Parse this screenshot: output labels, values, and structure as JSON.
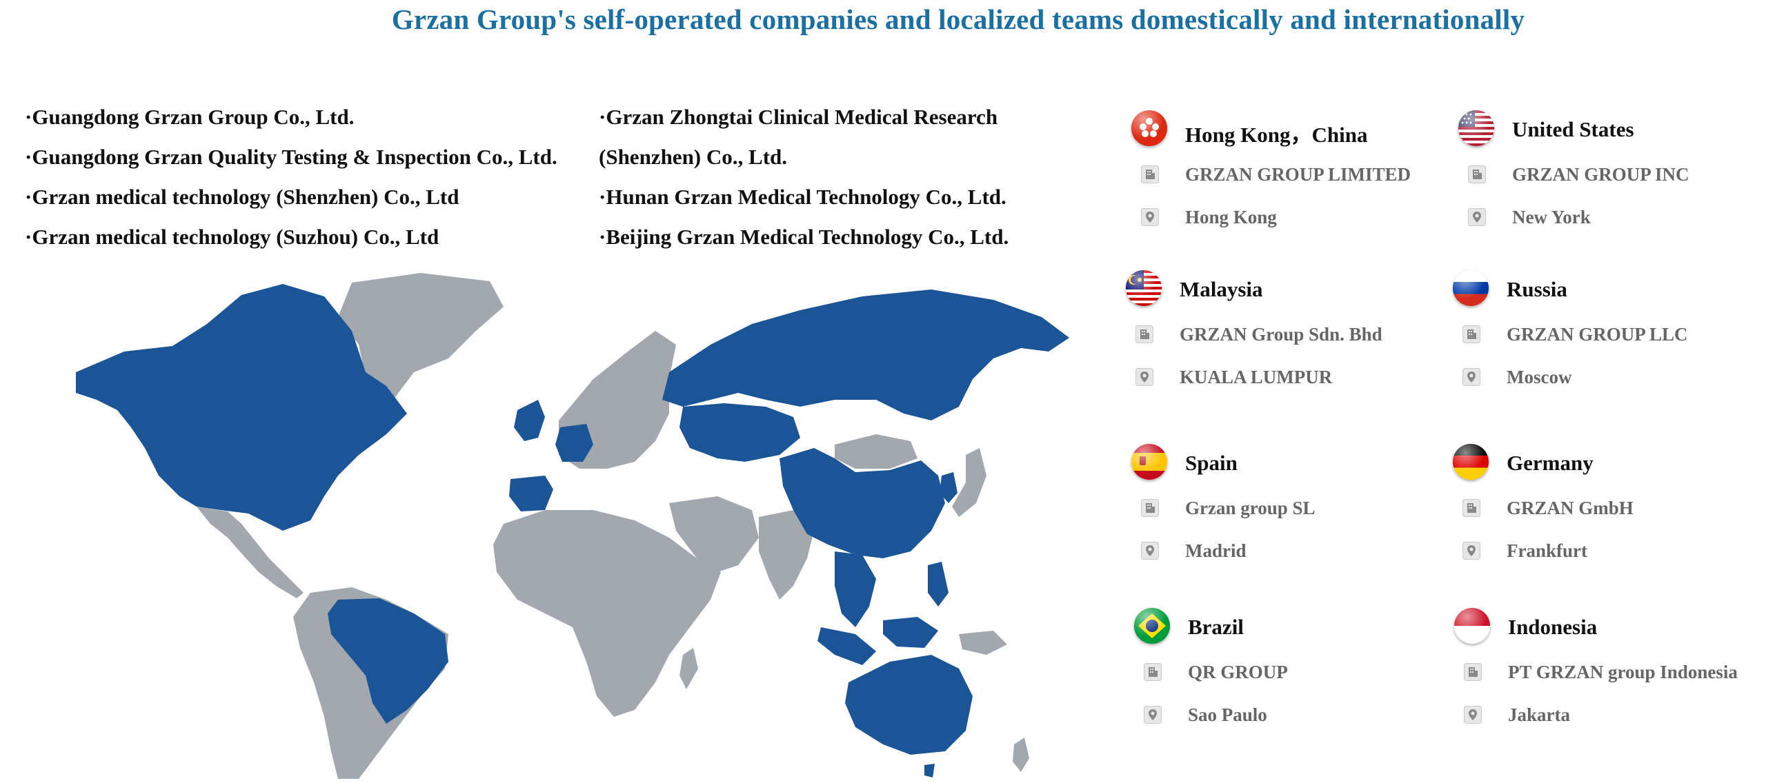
{
  "title": "Grzan Group's self-operated companies and localized teams domestically and internationally",
  "companies_left": [
    "·Guangdong Grzan Group Co., Ltd.",
    "·Guangdong Grzan Quality Testing & Inspection Co., Ltd.",
    "·Grzan medical technology (Shenzhen) Co., Ltd",
    "·Grzan medical technology (Suzhou) Co., Ltd"
  ],
  "companies_right": [
    "·Grzan Zhongtai Clinical Medical Research",
    "(Shenzhen) Co., Ltd.",
    "·Hunan Grzan Medical Technology Co., Ltd.",
    "·Beijing Grzan Medical Technology Co., Ltd."
  ],
  "locations": [
    {
      "country": "Hong Kong，China",
      "flag_icon": "hong-kong-flag-icon",
      "company": "GRZAN GROUP LIMITED",
      "city": "Hong Kong"
    },
    {
      "country": "United States",
      "flag_icon": "united-states-flag-icon",
      "company": "GRZAN GROUP INC",
      "city": "New York"
    },
    {
      "country": "Malaysia",
      "flag_icon": "malaysia-flag-icon",
      "company": "GRZAN Group Sdn. Bhd",
      "city": "KUALA LUMPUR"
    },
    {
      "country": "Russia",
      "flag_icon": "russia-flag-icon",
      "company": "GRZAN GROUP LLC",
      "city": "Moscow"
    },
    {
      "country": "Spain",
      "flag_icon": "spain-flag-icon",
      "company": "Grzan group SL",
      "city": "Madrid"
    },
    {
      "country": "Germany",
      "flag_icon": "germany-flag-icon",
      "company": "GRZAN GmbH",
      "city": "Frankfurt"
    },
    {
      "country": "Brazil",
      "flag_icon": "brazil-flag-icon",
      "company": "QR GROUP",
      "city": "Sao Paulo"
    },
    {
      "country": "Indonesia",
      "flag_icon": "indonesia-flag-icon",
      "company": "PT GRZAN group Indonesia",
      "city": "Jakarta"
    }
  ],
  "colors": {
    "title": "#1a6fa3",
    "map_highlight": "#1b5597",
    "map_base": "#a2a8ad",
    "info_text": "#666666"
  }
}
